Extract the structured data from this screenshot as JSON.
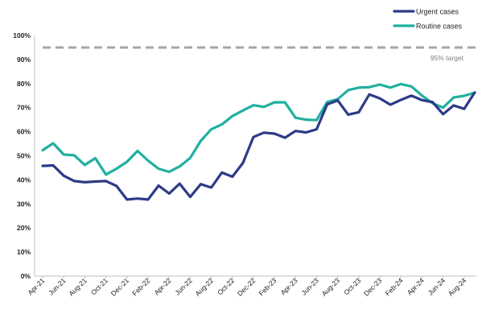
{
  "chart_data": {
    "type": "line",
    "title": "",
    "xlabel": "",
    "ylabel": "",
    "ylim": [
      0,
      100
    ],
    "yticks": [
      "0%",
      "10%",
      "20%",
      "30%",
      "40%",
      "50%",
      "60%",
      "70%",
      "80%",
      "90%",
      "100%"
    ],
    "x": [
      "Apr-21",
      "May-21",
      "Jun-21",
      "Jul-21",
      "Aug-21",
      "Sep-21",
      "Oct-21",
      "Nov-21",
      "Dec-21",
      "Jan-22",
      "Feb-22",
      "Mar-22",
      "Apr-22",
      "May-22",
      "Jun-22",
      "Jul-22",
      "Aug-22",
      "Sep-22",
      "Oct-22",
      "Nov-22",
      "Dec-22",
      "Jan-23",
      "Feb-23",
      "Mar-23",
      "Apr-23",
      "May-23",
      "Jun-23",
      "Jul-23",
      "Aug-23",
      "Sep-23",
      "Oct-23",
      "Nov-23",
      "Dec-23",
      "Jan-24",
      "Feb-24",
      "Mar-24",
      "Apr-24",
      "May-24",
      "Jun-24",
      "Jul-24",
      "Aug-24",
      "Sep-24"
    ],
    "xtick_labels": [
      "Apr-21",
      "Jun-21",
      "Aug-21",
      "Oct-21",
      "Dec-21",
      "Feb-22",
      "Apr-22",
      "Jun-22",
      "Aug-22",
      "Oct-22",
      "Dec-22",
      "Feb-23",
      "Apr-23",
      "Jun-23",
      "Aug-23",
      "Oct-23",
      "Dec-23",
      "Feb-24",
      "Apr-24",
      "Jun-24",
      "Aug-24"
    ],
    "series": [
      {
        "name": "Urgent cases",
        "color": "#2e3a87",
        "values": [
          45.8,
          46,
          41.7,
          39.5,
          39,
          39.3,
          39.5,
          37.5,
          31.8,
          32.2,
          31.8,
          37.6,
          34.3,
          38.4,
          32.9,
          38.2,
          36.8,
          43,
          41.3,
          47,
          57.8,
          59.6,
          59.2,
          57.5,
          60.3,
          59.7,
          61,
          71.3,
          73,
          67.1,
          68.1,
          75.5,
          73.8,
          71.2,
          73.2,
          75,
          73.1,
          72.3,
          67.3,
          70.9,
          69.5,
          76.3
        ]
      },
      {
        "name": "Routine cases",
        "color": "#1fb0a0",
        "values": [
          52.3,
          55.2,
          50.5,
          50.2,
          46.2,
          49,
          42.2,
          44.6,
          47.5,
          52,
          48,
          44.6,
          43.3,
          45.6,
          49.1,
          56.2,
          61,
          63,
          66.5,
          68.8,
          71,
          70.3,
          72.2,
          72.2,
          65.8,
          65,
          64.8,
          72.3,
          73.5,
          77.3,
          78.3,
          78.5,
          79.6,
          78.3,
          79.8,
          78.8,
          75,
          71.8,
          70,
          74.2,
          74.9,
          76.2
        ]
      }
    ],
    "target": {
      "value": 95,
      "label": "95% target",
      "color": "#a6a6a6"
    },
    "grid": false,
    "legend_position": "top-right"
  }
}
